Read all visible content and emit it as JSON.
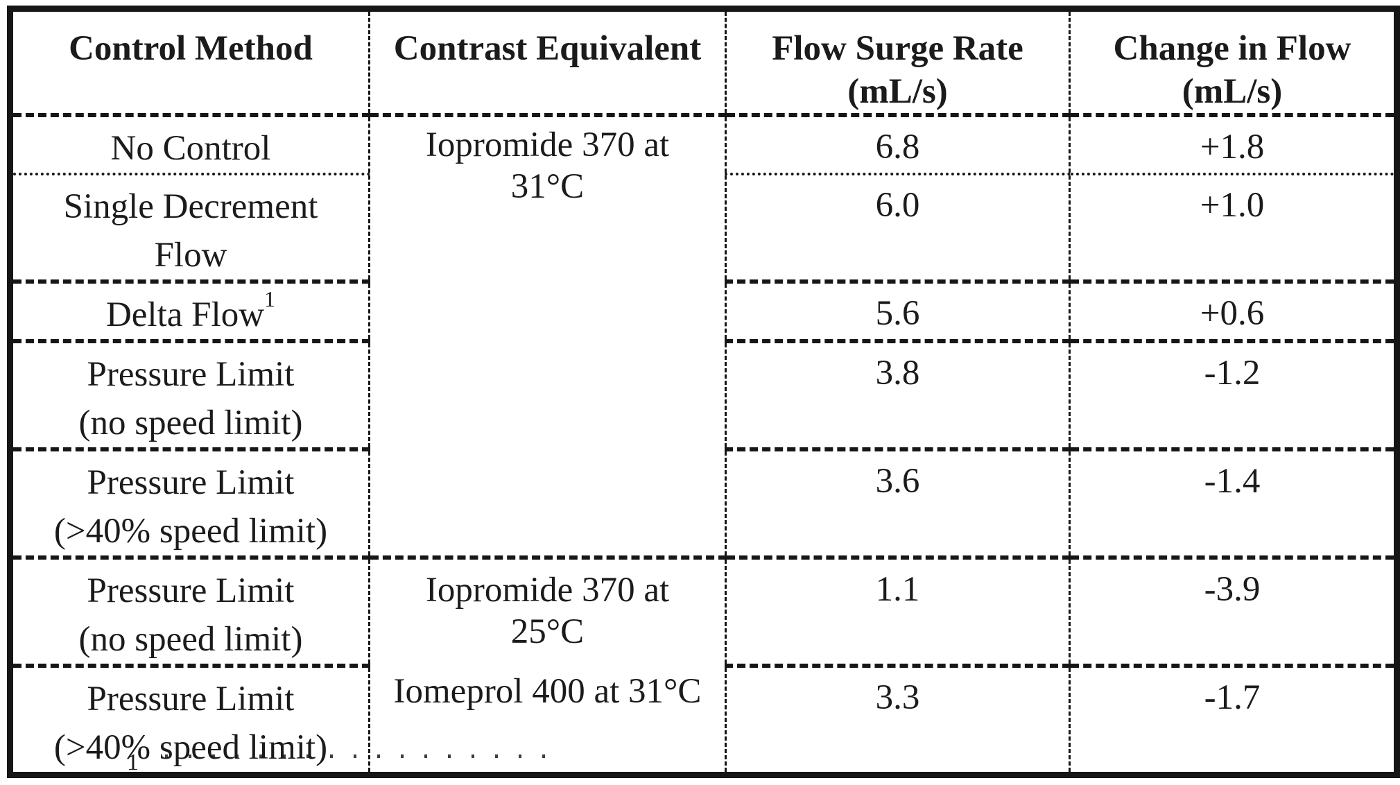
{
  "colors": {
    "ink": "#1b1b1b",
    "paper": "#ffffff"
  },
  "table": {
    "headers": [
      {
        "label": "Control Method"
      },
      {
        "label": "Contrast Equivalent"
      },
      {
        "label": "Flow Surge Rate",
        "unit": "(mL/s)"
      },
      {
        "label": "Change in Flow",
        "unit": "(mL/s)"
      }
    ],
    "sections": [
      {
        "contrast_equivalent": {
          "lines": [
            "Iopromide 370 at",
            "31°C"
          ]
        },
        "rows": [
          {
            "control_method": [
              "No Control"
            ],
            "flow_surge_rate": "6.8",
            "change_in_flow": "+1.8"
          },
          {
            "control_method": [
              "Single Decrement",
              "Flow"
            ],
            "flow_surge_rate": "6.0",
            "change_in_flow": "+1.0"
          },
          {
            "control_method": [
              "Delta Flow"
            ],
            "superscript": "1",
            "flow_surge_rate": "5.6",
            "change_in_flow": "+0.6"
          },
          {
            "control_method": [
              "Pressure Limit",
              "(no speed limit)"
            ],
            "flow_surge_rate": "3.8",
            "change_in_flow": "-1.2"
          },
          {
            "control_method": [
              "Pressure Limit",
              "(>40% speed limit)"
            ],
            "flow_surge_rate": "3.6",
            "change_in_flow": "-1.4"
          }
        ]
      },
      {
        "contrast_equivalent": {
          "lines": [
            "Iopromide 370 at",
            "25°C",
            "Iomeprol 400 at 31°C"
          ]
        },
        "rows": [
          {
            "control_method": [
              "Pressure Limit",
              "(no speed limit)"
            ],
            "flow_surge_rate": "1.1",
            "change_in_flow": "-3.9"
          },
          {
            "control_method": [
              "Pressure Limit",
              "(>40% speed limit)"
            ],
            "flow_surge_rate": "3.3",
            "change_in_flow": "-1.7"
          }
        ]
      }
    ]
  },
  "footnote": {
    "marker": "1"
  }
}
